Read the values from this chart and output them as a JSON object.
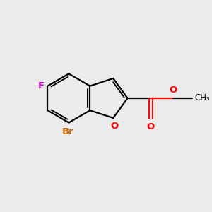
{
  "background_color": "#ebebeb",
  "bond_color": "#000000",
  "atom_colors": {
    "F": "#d400d4",
    "Br": "#cc6600",
    "O": "#ff0000",
    "C": "#000000"
  },
  "figsize": [
    3.0,
    3.0
  ],
  "dpi": 100
}
